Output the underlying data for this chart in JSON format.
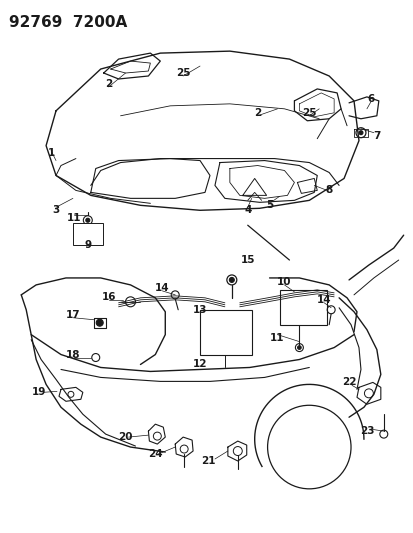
{
  "title": "92769  7200A",
  "bg_color": "#ffffff",
  "line_color": "#1a1a1a",
  "title_fontsize": 11,
  "label_fontsize": 7.5,
  "fig_width": 4.14,
  "fig_height": 5.33,
  "dpi": 100
}
